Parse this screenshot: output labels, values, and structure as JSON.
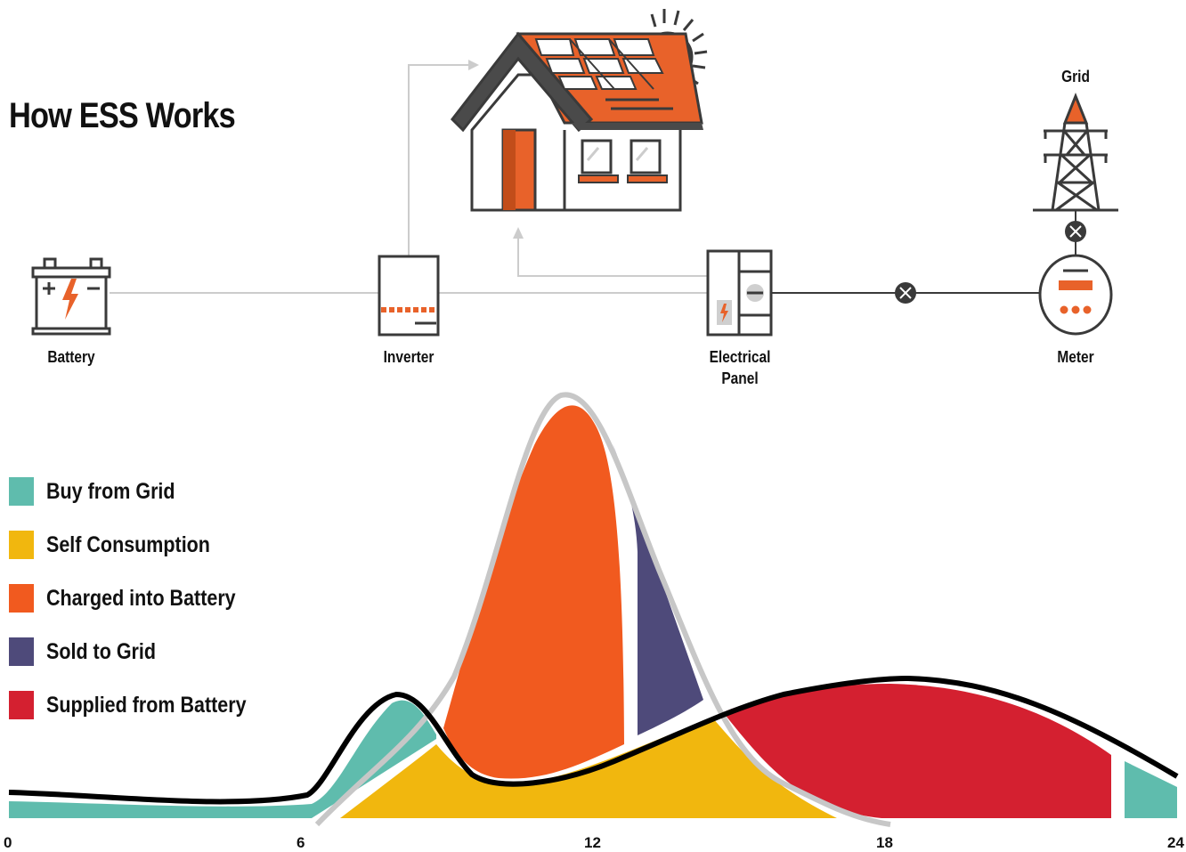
{
  "title": "How ESS Works",
  "components": {
    "battery": "Battery",
    "inverter": "Inverter",
    "panel_line1": "Electrical",
    "panel_line2": "Panel",
    "meter": "Meter",
    "grid": "Grid"
  },
  "legend": [
    {
      "label": "Buy from Grid",
      "color": "#5fbcad"
    },
    {
      "label": "Self Consumption",
      "color": "#f1b70e"
    },
    {
      "label": "Charged into Battery",
      "color": "#f15a1f"
    },
    {
      "label": "Sold to Grid",
      "color": "#4e4a7a"
    },
    {
      "label": "Supplied from Battery",
      "color": "#d42030"
    }
  ],
  "x_ticks": [
    "0",
    "6",
    "12",
    "18",
    "24"
  ],
  "colors": {
    "accent": "#e8622a",
    "dark": "#3a3a3a",
    "sun": "#f6d21a",
    "connector": "#bbbbbb"
  }
}
